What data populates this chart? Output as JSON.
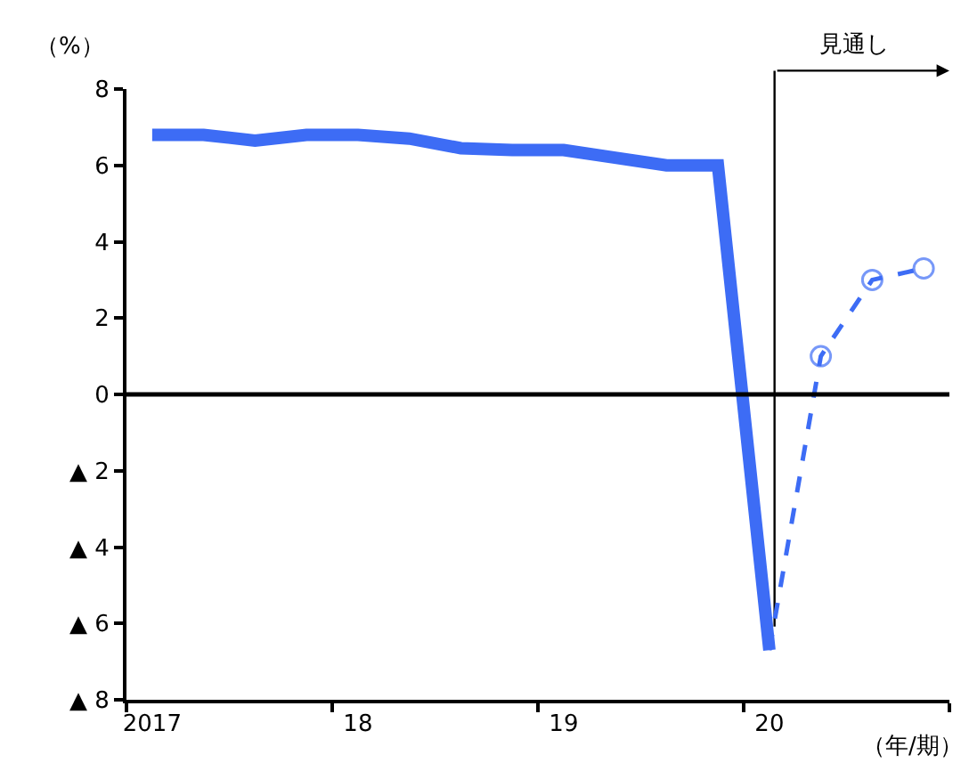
{
  "chart_data": {
    "type": "line",
    "ylabel": "（%）",
    "xlabel": "（年/期）",
    "categories": [
      "2017",
      null,
      null,
      null,
      "18",
      null,
      null,
      null,
      "19",
      null,
      null,
      null,
      "20",
      null,
      null,
      null
    ],
    "ylim": [
      -8,
      8
    ],
    "yticks": [
      {
        "value": -8,
        "label": "▲ 8"
      },
      {
        "value": -6,
        "label": "▲ 6"
      },
      {
        "value": -4,
        "label": "▲ 4"
      },
      {
        "value": -2,
        "label": "▲ 2"
      },
      0,
      2,
      4,
      6,
      8
    ],
    "grid": false,
    "series": [
      {
        "color": "#3d6cf5",
        "line_style": "dashed",
        "marker": "circle",
        "values": [
          null,
          null,
          null,
          null,
          null,
          null,
          null,
          null,
          null,
          null,
          null,
          null,
          -6.7,
          1.0,
          3.0,
          3.3
        ]
      },
      {
        "color": "#3d6cf5",
        "line_style": "solid",
        "marker": "none",
        "values": [
          6.8,
          6.8,
          6.65,
          6.8,
          6.8,
          6.7,
          6.45,
          6.4,
          6.4,
          6.2,
          6.0,
          6.0,
          -6.7,
          null,
          null,
          null
        ]
      }
    ],
    "ref_lines": [
      {
        "axis": "y",
        "value": 0,
        "color": "#000000",
        "line_style": "solid",
        "label": null
      },
      {
        "axis": "x",
        "value": "20",
        "color": "#000000",
        "line_style": "solid",
        "label": "見通し"
      }
    ]
  }
}
